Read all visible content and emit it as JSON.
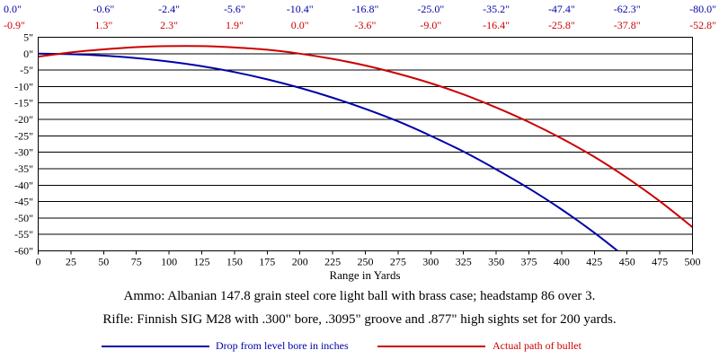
{
  "chart_data": {
    "type": "line",
    "xlabel": "Range in Yards",
    "ylabel": "",
    "xlim": [
      0,
      500
    ],
    "ylim": [
      -60,
      5
    ],
    "x_ticks": [
      "0",
      "25",
      "50",
      "75",
      "100",
      "125",
      "150",
      "175",
      "200",
      "225",
      "250",
      "275",
      "300",
      "325",
      "350",
      "375",
      "400",
      "425",
      "450",
      "475",
      "500"
    ],
    "y_ticks": [
      "5\"",
      "0\"",
      "-5\"",
      "-10\"",
      "-15\"",
      "-20\"",
      "-25\"",
      "-30\"",
      "-35\"",
      "-40\"",
      "-45\"",
      "-50\"",
      "-55\"",
      "-60\""
    ],
    "grid": true,
    "top_ranges": [
      0,
      50,
      100,
      150,
      200,
      250,
      300,
      350,
      400,
      450,
      500
    ],
    "top_labels_drop": [
      "0.0\"",
      "-0.6\"",
      "-2.4\"",
      "-5.6\"",
      "-10.4\"",
      "-16.8\"",
      "-25.0\"",
      "-35.2\"",
      "-47.4\"",
      "-62.3\"",
      "-80.0\""
    ],
    "top_labels_path": [
      "-0.9\"",
      "1.3\"",
      "2.3\"",
      "1.9\"",
      "0.0\"",
      "-3.6\"",
      "-9.0\"",
      "-16.4\"",
      "-25.8\"",
      "-37.8\"",
      "-52.8\""
    ],
    "series": [
      {
        "name": "Drop from level bore in inches",
        "color": "#0000a8",
        "x": [
          0,
          25,
          50,
          75,
          100,
          125,
          150,
          175,
          200,
          225,
          250,
          275,
          300,
          325,
          350,
          375,
          400,
          425,
          450
        ],
        "values": [
          0.0,
          -0.15,
          -0.6,
          -1.35,
          -2.4,
          -3.8,
          -5.6,
          -7.8,
          -10.4,
          -13.4,
          -16.8,
          -20.6,
          -25.0,
          -29.8,
          -35.2,
          -41.0,
          -47.4,
          -54.5,
          -62.3
        ]
      },
      {
        "name": "Actual path of bullet",
        "color": "#cc0000",
        "x": [
          0,
          25,
          50,
          75,
          100,
          125,
          150,
          175,
          200,
          225,
          250,
          275,
          300,
          325,
          350,
          375,
          400,
          425,
          450,
          475,
          500
        ],
        "values": [
          -0.9,
          0.4,
          1.3,
          2.0,
          2.3,
          2.3,
          1.9,
          1.2,
          0.0,
          -1.6,
          -3.6,
          -6.1,
          -9.0,
          -12.4,
          -16.4,
          -20.8,
          -25.8,
          -31.4,
          -37.8,
          -44.9,
          -52.8
        ]
      }
    ]
  },
  "info": {
    "ammo": "Ammo:  Albanian 147.8 grain steel core light ball with brass case; headstamp 86 over 3.",
    "rifle": "Rifle:  Finnish SIG M28 with .300\" bore, .3095\" groove and .877\" high sights set for 200 yards."
  },
  "legend": {
    "drop_label": "Drop from level bore in inches",
    "path_label": "Actual path of bullet"
  }
}
